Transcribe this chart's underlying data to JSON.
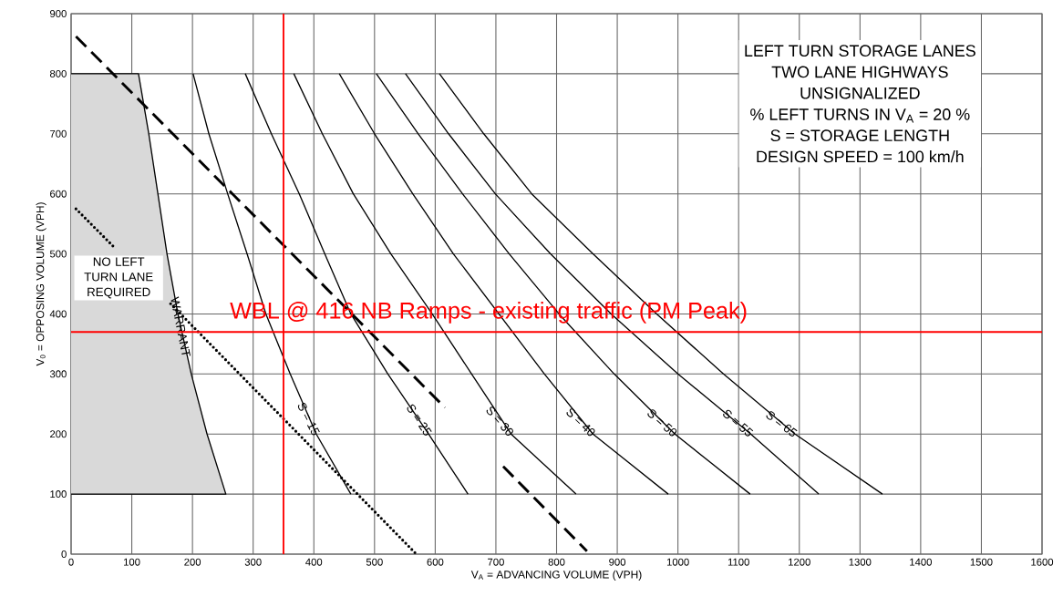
{
  "chart_data": {
    "type": "line",
    "title": "LEFT TURN STORAGE LANES",
    "subtitle": "TWO LANE HIGHWAYS",
    "xlabel": "V$_{A}$ = ADVANCING VOLUME (VPH)",
    "ylabel": "V$_{0}$ = OPPOSING VOLUME (VPH)",
    "annotations": [
      "UNSIGNALIZED",
      "% LEFT TURNS IN V$_{A}$ = 20 %",
      "S = STORAGE LENGTH",
      "DESIGN SPEED = 100 km/h",
      "NO LEFT TURN LANE REQUIRED"
    ],
    "xlim": [
      0,
      1600
    ],
    "ylim": [
      0,
      900
    ],
    "xticks": [
      0,
      100,
      200,
      300,
      400,
      500,
      600,
      700,
      800,
      900,
      1000,
      1100,
      1200,
      1300,
      1400,
      1500,
      1600
    ],
    "yticks": [
      0,
      100,
      200,
      300,
      400,
      500,
      600,
      700,
      800,
      900
    ],
    "grid": true,
    "series": [
      {
        "type": "area",
        "name": "WARRANT",
        "color": "#d9d9d9",
        "x": [
          0,
          111,
          128,
          143,
          158,
          176,
          198,
          224,
          255,
          0
        ],
        "values": [
          800,
          800,
          700,
          600,
          500,
          400,
          300,
          200,
          100,
          100
        ]
      },
      {
        "name": "S = 15",
        "color": "#000000",
        "x": [
          201,
          227,
          258,
          290,
          321,
          361,
          404,
          461
        ],
        "values": [
          800,
          700,
          600,
          500,
          400,
          300,
          200,
          100
        ]
      },
      {
        "name": "S = 25",
        "color": "#000000",
        "x": [
          287,
          330,
          376,
          418,
          461,
          522,
          589,
          654
        ],
        "values": [
          800,
          700,
          600,
          500,
          400,
          300,
          200,
          100
        ]
      },
      {
        "name": "S = 30",
        "color": "#000000",
        "x": [
          367,
          414,
          465,
          527,
          595,
          660,
          725,
          832
        ],
        "values": [
          800,
          700,
          600,
          500,
          400,
          300,
          200,
          100
        ]
      },
      {
        "name": "S = 40",
        "color": "#000000",
        "x": [
          442,
          500,
          563,
          630,
          705,
          780,
          860,
          984
        ],
        "values": [
          800,
          700,
          600,
          500,
          400,
          300,
          200,
          100
        ]
      },
      {
        "name": "S = 50",
        "color": "#000000",
        "x": [
          503,
          572,
          645,
          722,
          804,
          895,
          995,
          1119
        ],
        "values": [
          800,
          700,
          600,
          500,
          400,
          300,
          200,
          100
        ]
      },
      {
        "name": "S = 55",
        "color": "#000000",
        "x": [
          551,
          622,
          699,
          790,
          890,
          1000,
          1120,
          1232
        ],
        "values": [
          800,
          700,
          600,
          500,
          400,
          300,
          200,
          100
        ]
      },
      {
        "name": "S = 65",
        "color": "#000000",
        "x": [
          607,
          680,
          759,
          860,
          965,
          1075,
          1193,
          1337
        ],
        "values": [
          800,
          700,
          600,
          500,
          400,
          300,
          200,
          100
        ]
      },
      {
        "color": "#000000",
        "line_style": "dashed",
        "x": [
          8,
          616,
          664,
          712,
          850
        ],
        "values": [
          862,
          244,
          null,
          146,
          5
        ]
      },
      {
        "color": "#000000",
        "line_style": "dotted",
        "x": [
          8,
          71,
          118,
          164,
          569
        ],
        "values": [
          575,
          511,
          null,
          417,
          0
        ]
      }
    ],
    "ref_lines": [
      {
        "axis": "x",
        "value": 350,
        "color": "#ff0000"
      },
      {
        "axis": "y",
        "value": 370,
        "color": "#ff0000",
        "label": "WBL @ 416 NB Ramps - existing traffic (PM Peak)"
      }
    ]
  }
}
